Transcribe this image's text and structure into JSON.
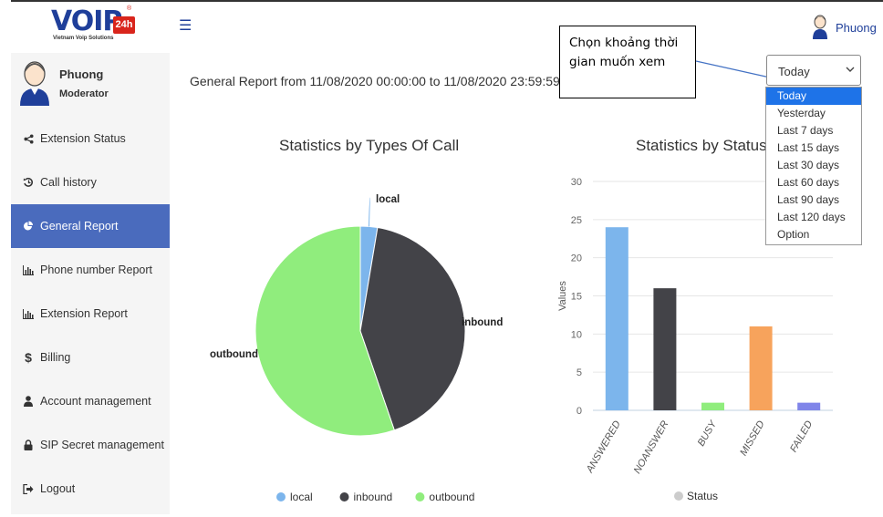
{
  "brand": {
    "logo_main": "VOIP",
    "logo_number": "24h",
    "logo_registered": "®",
    "logo_subtitle": "Vietnam Voip Solutions"
  },
  "header": {
    "menu_icon": "hamburger-icon",
    "user_name": "Phuong",
    "user_icon": "user-avatar-icon"
  },
  "sidebar": {
    "profile": {
      "name": "Phuong",
      "role": "Moderator"
    },
    "items": [
      {
        "label": "Extension Status",
        "icon": "share-icon",
        "active": false
      },
      {
        "label": "Call history",
        "icon": "history-icon",
        "active": false
      },
      {
        "label": "General Report",
        "icon": "pie-chart-icon",
        "active": true
      },
      {
        "label": "Phone number Report",
        "icon": "bar-chart-icon",
        "active": false
      },
      {
        "label": "Extension Report",
        "icon": "bar-chart-icon",
        "active": false
      },
      {
        "label": "Billing",
        "icon": "dollar-icon",
        "active": false
      },
      {
        "label": "Account management",
        "icon": "user-icon",
        "active": false
      },
      {
        "label": "SIP Secret management",
        "icon": "lock-icon",
        "active": false
      },
      {
        "label": "Logout",
        "icon": "logout-icon",
        "active": false
      }
    ]
  },
  "main": {
    "report_title": "General Report from 11/08/2020 00:00:00 to 11/08/2020 23:59:59"
  },
  "time_select": {
    "selected": "Today",
    "options": [
      "Today",
      "Yesterday",
      "Last 7 days",
      "Last 15 days",
      "Last 30 days",
      "Last 60 days",
      "Last 90 days",
      "Last 120 days",
      "Option"
    ]
  },
  "callout": {
    "text": "Chọn khoảng thời gian muốn xem"
  },
  "chart_data": [
    {
      "type": "pie",
      "title": "Statistics by Types Of Call",
      "categories": [
        "local",
        "inbound",
        "outbound"
      ],
      "values": [
        1,
        16,
        21
      ],
      "colors": [
        "#7cb5ec",
        "#434348",
        "#90ed7d"
      ],
      "legend": "bottom"
    },
    {
      "type": "bar",
      "title": "Statistics by Status",
      "ylabel": "Values",
      "categories": [
        "ANSWERED",
        "NOANSWER",
        "BUSY",
        "MISSED",
        "FAILED"
      ],
      "values": [
        24,
        16,
        1,
        11,
        1
      ],
      "colors": [
        "#7cb5ec",
        "#434348",
        "#90ed7d",
        "#f7a35c",
        "#8085e9"
      ],
      "ylim": [
        0,
        30
      ],
      "yticks": [
        0,
        5,
        10,
        15,
        20,
        25,
        30
      ],
      "legend_label": "Status",
      "legend": "bottom",
      "grid": true
    }
  ]
}
